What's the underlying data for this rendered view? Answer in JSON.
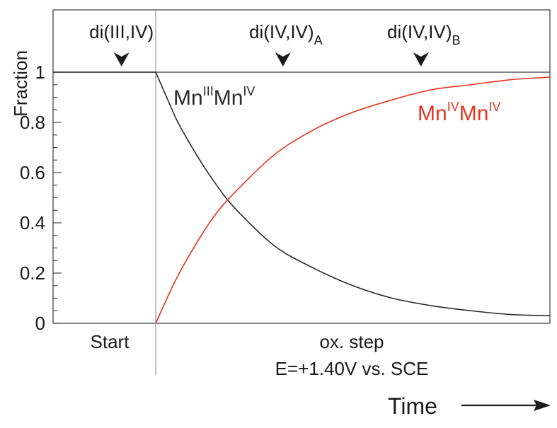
{
  "chart_data": {
    "type": "line",
    "ylabel": "Fraction",
    "ylim": [
      0,
      1
    ],
    "yticks": [
      0,
      0.2,
      0.4,
      0.6,
      0.8,
      1
    ],
    "ytick_labels": [
      "0",
      "0.2",
      "0.4",
      "0.6",
      "0.8",
      "1"
    ],
    "xlim": [
      -0.3,
      1.0
    ],
    "grid": false,
    "phase_labels": {
      "start": "Start",
      "step_line1": "ox. step",
      "step_line2": "E=+1.40V vs. SCE"
    },
    "time_label": "Time",
    "markers": [
      {
        "base": "di(III,IV)",
        "sub": "",
        "x": -0.1
      },
      {
        "base": "di(IV,IV)",
        "sub": "A",
        "x": 0.33
      },
      {
        "base": "di(IV,IV)",
        "sub": "B",
        "x": 0.68
      }
    ],
    "series": [
      {
        "label_parts": [
          {
            "text": "Mn",
            "sup": false
          },
          {
            "text": "III",
            "sup": true
          },
          {
            "text": "Mn",
            "sup": false
          },
          {
            "text": "IV",
            "sup": true
          }
        ],
        "color": "#2a2a2a",
        "x": [
          -0.3,
          0.0,
          0.05,
          0.1,
          0.15,
          0.2,
          0.3,
          0.4,
          0.5,
          0.6,
          0.7,
          0.8,
          0.9,
          1.0
        ],
        "values": [
          1.0,
          1.0,
          0.82,
          0.68,
          0.56,
          0.46,
          0.31,
          0.22,
          0.15,
          0.1,
          0.07,
          0.05,
          0.035,
          0.03
        ]
      },
      {
        "label_parts": [
          {
            "text": "Mn",
            "sup": false
          },
          {
            "text": "IV",
            "sup": true
          },
          {
            "text": "Mn",
            "sup": false
          },
          {
            "text": "IV",
            "sup": true
          }
        ],
        "color": "#e8321e",
        "x": [
          0.0,
          0.05,
          0.1,
          0.15,
          0.2,
          0.3,
          0.4,
          0.5,
          0.6,
          0.7,
          0.8,
          0.9,
          1.0
        ],
        "values": [
          0.0,
          0.17,
          0.31,
          0.43,
          0.52,
          0.67,
          0.77,
          0.84,
          0.89,
          0.93,
          0.95,
          0.97,
          0.98
        ]
      }
    ]
  }
}
